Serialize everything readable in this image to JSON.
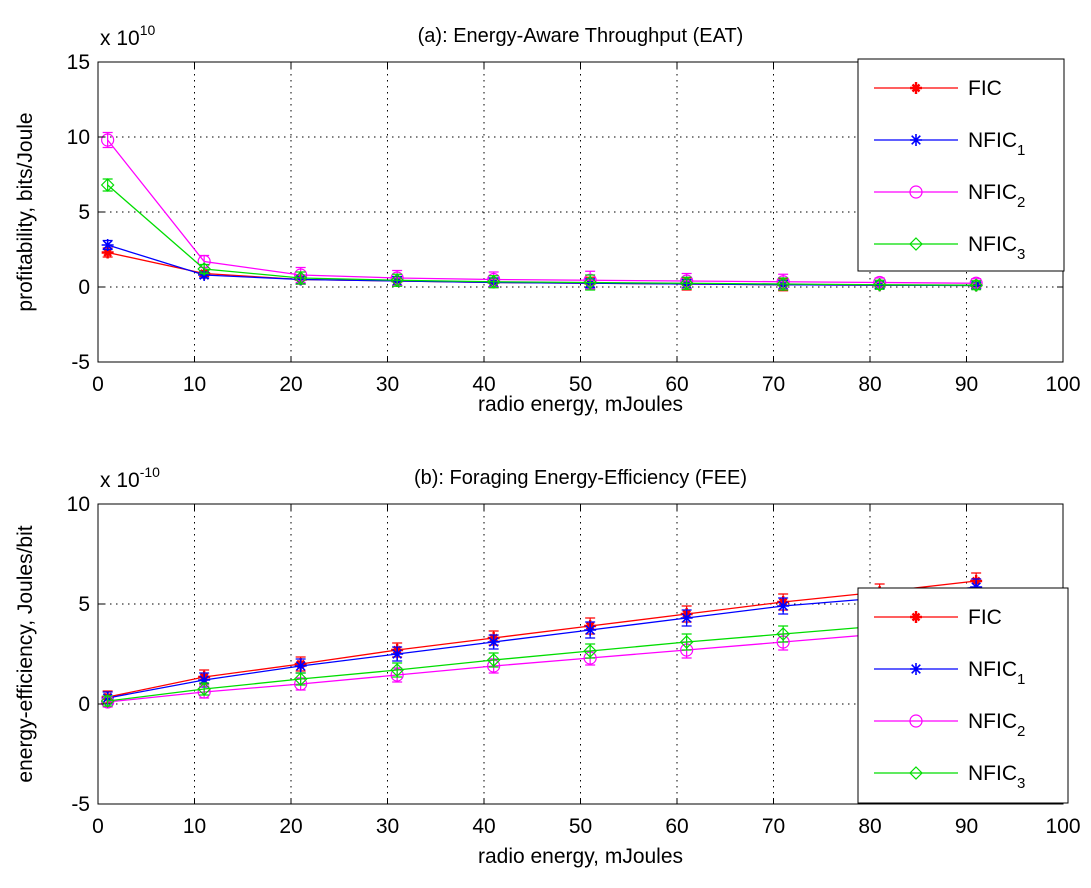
{
  "chart_data": [
    {
      "type": "line",
      "title": "(a): Energy-Aware Throughput (EAT)",
      "xlabel": "radio energy, mJoules",
      "ylabel": "profitability, bits/Joule",
      "y_multiplier": "x 10",
      "y_multiplier_exp": "10",
      "xlim": [
        0,
        100
      ],
      "ylim": [
        -5,
        15
      ],
      "x_ticks": [
        "0",
        "10",
        "20",
        "30",
        "40",
        "50",
        "60",
        "70",
        "80",
        "90",
        "100"
      ],
      "y_ticks": [
        "-5",
        "0",
        "5",
        "10",
        "15"
      ],
      "grid": true,
      "legend_position": "top-right",
      "x": [
        1,
        11,
        21,
        31,
        41,
        51,
        61,
        71,
        81,
        91
      ],
      "series": [
        {
          "name": "FIC",
          "sub": "",
          "color": "#ff0000",
          "marker": "star",
          "values": [
            2.3,
            0.9,
            0.5,
            0.4,
            0.3,
            0.25,
            0.2,
            0.15,
            0.12,
            0.1
          ],
          "errors": [
            0.3,
            0.2,
            0.3,
            0.3,
            0.3,
            0.4,
            0.4,
            0.4,
            0.2,
            0.2
          ]
        },
        {
          "name": "NFIC",
          "sub": "1",
          "color": "#0000ff",
          "marker": "asterisk",
          "values": [
            2.8,
            0.8,
            0.5,
            0.4,
            0.3,
            0.25,
            0.2,
            0.15,
            0.12,
            0.1
          ],
          "errors": [
            0.3,
            0.2,
            0.3,
            0.3,
            0.3,
            0.3,
            0.3,
            0.3,
            0.2,
            0.2
          ]
        },
        {
          "name": "NFIC",
          "sub": "2",
          "color": "#ff00ff",
          "marker": "circle",
          "values": [
            9.8,
            1.7,
            0.8,
            0.6,
            0.5,
            0.45,
            0.4,
            0.35,
            0.3,
            0.25
          ],
          "errors": [
            0.5,
            0.4,
            0.5,
            0.5,
            0.5,
            0.6,
            0.5,
            0.5,
            0.3,
            0.3
          ]
        },
        {
          "name": "NFIC",
          "sub": "3",
          "color": "#00dd00",
          "marker": "diamond",
          "values": [
            6.8,
            1.2,
            0.6,
            0.45,
            0.35,
            0.3,
            0.25,
            0.2,
            0.15,
            0.12
          ],
          "errors": [
            0.4,
            0.3,
            0.4,
            0.4,
            0.4,
            0.5,
            0.4,
            0.4,
            0.3,
            0.3
          ]
        }
      ]
    },
    {
      "type": "line",
      "title": "(b): Foraging Energy-Efficiency (FEE)",
      "xlabel": "radio energy, mJoules",
      "ylabel": "energy-efficiency, Joules/bit",
      "y_multiplier": "x 10",
      "y_multiplier_exp": "-10",
      "xlim": [
        0,
        100
      ],
      "ylim": [
        -5,
        10
      ],
      "x_ticks": [
        "0",
        "10",
        "20",
        "30",
        "40",
        "50",
        "60",
        "70",
        "80",
        "90",
        "100"
      ],
      "y_ticks": [
        "-5",
        "0",
        "5",
        "10"
      ],
      "grid": true,
      "legend_position": "bottom-right",
      "x": [
        1,
        11,
        21,
        31,
        41,
        51,
        61,
        71,
        81,
        91
      ],
      "series": [
        {
          "name": "FIC",
          "sub": "",
          "color": "#ff0000",
          "marker": "star",
          "values": [
            0.35,
            1.35,
            2.0,
            2.7,
            3.3,
            3.9,
            4.5,
            5.1,
            5.6,
            6.15
          ],
          "errors": [
            0.3,
            0.35,
            0.35,
            0.35,
            0.35,
            0.4,
            0.4,
            0.4,
            0.4,
            0.4
          ]
        },
        {
          "name": "NFIC",
          "sub": "1",
          "color": "#0000ff",
          "marker": "asterisk",
          "values": [
            0.3,
            1.2,
            1.9,
            2.5,
            3.1,
            3.7,
            4.3,
            4.9,
            5.3,
            5.85
          ],
          "errors": [
            0.3,
            0.35,
            0.35,
            0.35,
            0.35,
            0.4,
            0.4,
            0.4,
            0.4,
            0.4
          ]
        },
        {
          "name": "NFIC",
          "sub": "2",
          "color": "#ff00ff",
          "marker": "circle",
          "values": [
            0.1,
            0.6,
            1.0,
            1.45,
            1.9,
            2.3,
            2.7,
            3.1,
            3.5,
            3.9
          ],
          "errors": [
            0.25,
            0.3,
            0.3,
            0.35,
            0.35,
            0.35,
            0.4,
            0.4,
            0.4,
            0.4
          ]
        },
        {
          "name": "NFIC",
          "sub": "3",
          "color": "#00dd00",
          "marker": "diamond",
          "values": [
            0.15,
            0.75,
            1.25,
            1.7,
            2.2,
            2.65,
            3.1,
            3.5,
            3.9,
            4.35
          ],
          "errors": [
            0.25,
            0.3,
            0.3,
            0.35,
            0.35,
            0.35,
            0.4,
            0.4,
            0.4,
            0.4
          ]
        }
      ]
    }
  ]
}
